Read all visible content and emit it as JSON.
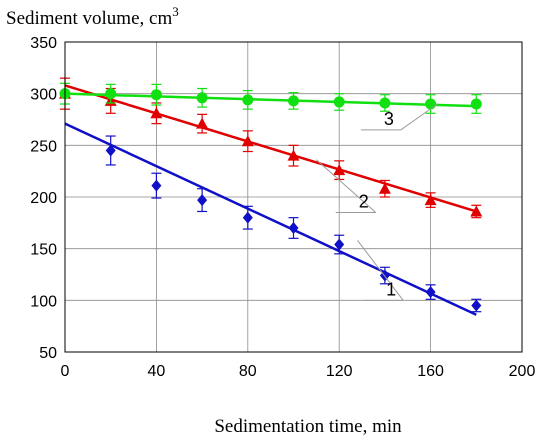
{
  "chart_data": {
    "type": "scatter",
    "title": "",
    "ylabel": "Sediment volume, cm",
    "ylabel_superscript": "3",
    "xlabel": "Sedimentation time, min",
    "xlim": [
      0,
      200
    ],
    "ylim": [
      50,
      350
    ],
    "x_ticks": [
      0,
      40,
      80,
      120,
      160,
      200
    ],
    "y_ticks": [
      50,
      100,
      150,
      200,
      250,
      300,
      350
    ],
    "grid": true,
    "series": [
      {
        "label": "1",
        "color": "#1010c8",
        "marker": "diamond",
        "x": [
          20,
          40,
          60,
          80,
          100,
          120,
          140,
          160,
          180
        ],
        "y": [
          245,
          211,
          197,
          180,
          170,
          154,
          124,
          108,
          95
        ],
        "err": [
          14,
          12,
          11,
          11,
          10,
          9,
          8,
          7,
          6
        ],
        "fit": {
          "x": [
            0,
            180
          ],
          "y": [
            271,
            86
          ]
        }
      },
      {
        "label": "2",
        "color": "#e00000",
        "marker": "triangle",
        "x": [
          0,
          20,
          40,
          60,
          80,
          100,
          120,
          140,
          160,
          180
        ],
        "y": [
          300,
          293,
          281,
          271,
          254,
          240,
          226,
          208,
          197,
          186
        ],
        "err": [
          15,
          12,
          10,
          9,
          10,
          10,
          9,
          8,
          7,
          6
        ],
        "fit": {
          "x": [
            0,
            180
          ],
          "y": [
            308,
            186
          ]
        }
      },
      {
        "label": "3",
        "color": "#10e010",
        "marker": "circle",
        "x": [
          0,
          20,
          40,
          60,
          80,
          100,
          120,
          140,
          160,
          180
        ],
        "y": [
          300,
          300,
          299,
          296,
          294,
          293,
          292,
          291,
          290,
          290
        ],
        "err": [
          10,
          9,
          10,
          9,
          9,
          8,
          8,
          8,
          9,
          9
        ],
        "fit": {
          "x": [
            0,
            180
          ],
          "y": [
            300,
            288
          ]
        }
      }
    ],
    "annotations": [
      {
        "text": "1",
        "series": "1",
        "leader_x": [
          148,
          128
        ],
        "leader_y": [
          100,
          158
        ]
      },
      {
        "text": "2",
        "series": "2",
        "leader_x": [
          136,
          110
        ],
        "leader_y": [
          185,
          236
        ]
      },
      {
        "text": "3",
        "series": "3",
        "leader_x": [
          147,
          163
        ],
        "leader_y": [
          265,
          290
        ]
      }
    ]
  }
}
